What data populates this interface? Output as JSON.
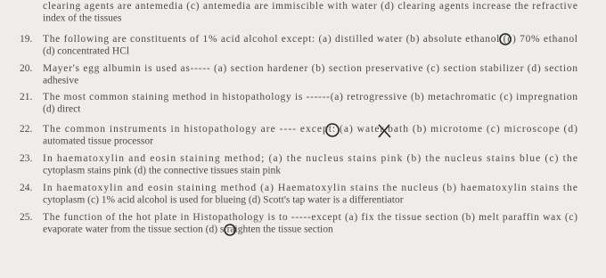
{
  "continuation": {
    "lines": [
      "clearing agents are antemedia (c) antemedia are immiscible with water (d) clearing agents increase the refractive",
      "index of the tissues"
    ]
  },
  "questions": [
    {
      "number": "19.",
      "lines": [
        "The following are constituents of 1% acid alcohol except: (a) distilled water (b) absolute ethanol (c) 70% ethanol",
        "(d) concentrated HCl"
      ]
    },
    {
      "number": "20.",
      "lines": [
        "Mayer's egg albumin is used as----- (a) section hardener (b) section preservative (c) section stabilizer (d) section",
        "adhesive"
      ]
    },
    {
      "number": "21.",
      "lines": [
        "The most common staining method in histopathology is ------(a) retrogressive (b) metachromatic (c) impregnation",
        "(d) direct"
      ]
    },
    {
      "number": "22.",
      "lines": [
        "The common instruments in histopathology are ---- except: (a) water bath (b) microtome (c) microscope (d)",
        "automated tissue processor"
      ]
    },
    {
      "number": "23.",
      "lines": [
        "In haematoxylin and eosin staining method; (a) the nucleus stains pink (b) the nucleus stains blue (c) the",
        "cytoplasm stains pink (d) the connective tissues stain pink"
      ]
    },
    {
      "number": "24.",
      "lines": [
        "In haematoxylin and eosin staining method (a) Haematoxylin stains the nucleus (b) haematoxylin stains the",
        "cytoplasm (c) 1% acid alcohol is used for blueing (d) Scott's tap water is a differentiator"
      ]
    },
    {
      "number": "25.",
      "lines": [
        "The function of the hot plate in Histopathology is to -----except (a) fix the tissue section (b) melt paraffin wax (c)",
        "evaporate water from the tissue section (d) straighten the tissue section"
      ]
    }
  ]
}
